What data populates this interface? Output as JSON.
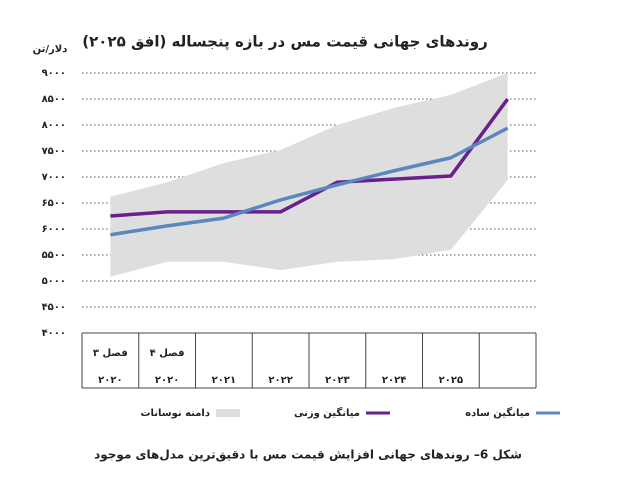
{
  "chart_data": {
    "type": "line",
    "title": "روندهای جهانی قیمت مس در بازه پنجساله (افق ۲۰۲۵)",
    "y_label": "دلار/تن",
    "caption": "شکل 6– روندهای جهانی افزایش قیمت مس با دقیق‌ترین مدل‌های موجود",
    "categories": [
      "۲۰۲۰",
      "۲۰۲۰",
      "۲۰۲۱",
      "۲۰۲۲",
      "۲۰۲۳",
      "۲۰۲۴",
      "۲۰۲۵",
      null
    ],
    "category_sublabels": [
      "فصل ۳",
      "فصل ۴",
      null,
      null,
      null,
      null,
      null,
      null
    ],
    "ylim": [
      4000,
      9000
    ],
    "yticks": [
      {
        "value": 4000,
        "label": "۴۰۰۰"
      },
      {
        "value": 4500,
        "label": "۴۵۰۰"
      },
      {
        "value": 5000,
        "label": "۵۰۰۰"
      },
      {
        "value": 5500,
        "label": "۵۵۰۰"
      },
      {
        "value": 6000,
        "label": "۶۰۰۰"
      },
      {
        "value": 6500,
        "label": "۶۵۰۰"
      },
      {
        "value": 7000,
        "label": "۷۰۰۰"
      },
      {
        "value": 7500,
        "label": "۷۵۰۰"
      },
      {
        "value": 8000,
        "label": "۸۰۰۰"
      },
      {
        "value": 8500,
        "label": "۸۵۰۰"
      },
      {
        "value": 9000,
        "label": "۹۰۰۰"
      }
    ],
    "grid": true,
    "series": [
      {
        "name": "دامنه نوسانات",
        "kind": "range",
        "color": "#dedede",
        "low": [
          5080,
          5370,
          5370,
          5210,
          5370,
          5420,
          5600,
          6940
        ],
        "high": [
          6620,
          6900,
          7270,
          7520,
          8000,
          8330,
          8580,
          9000
        ]
      },
      {
        "name": "میانگین وزنی",
        "kind": "line",
        "color": "#6a1f8e",
        "values": [
          6250,
          6330,
          6330,
          6330,
          6900,
          6960,
          7020,
          8500
        ]
      },
      {
        "name": "میانگین ساده",
        "kind": "line",
        "color": "#5b87bf",
        "values": [
          5890,
          6060,
          6210,
          6560,
          6850,
          7120,
          7370,
          7940
        ]
      }
    ]
  }
}
